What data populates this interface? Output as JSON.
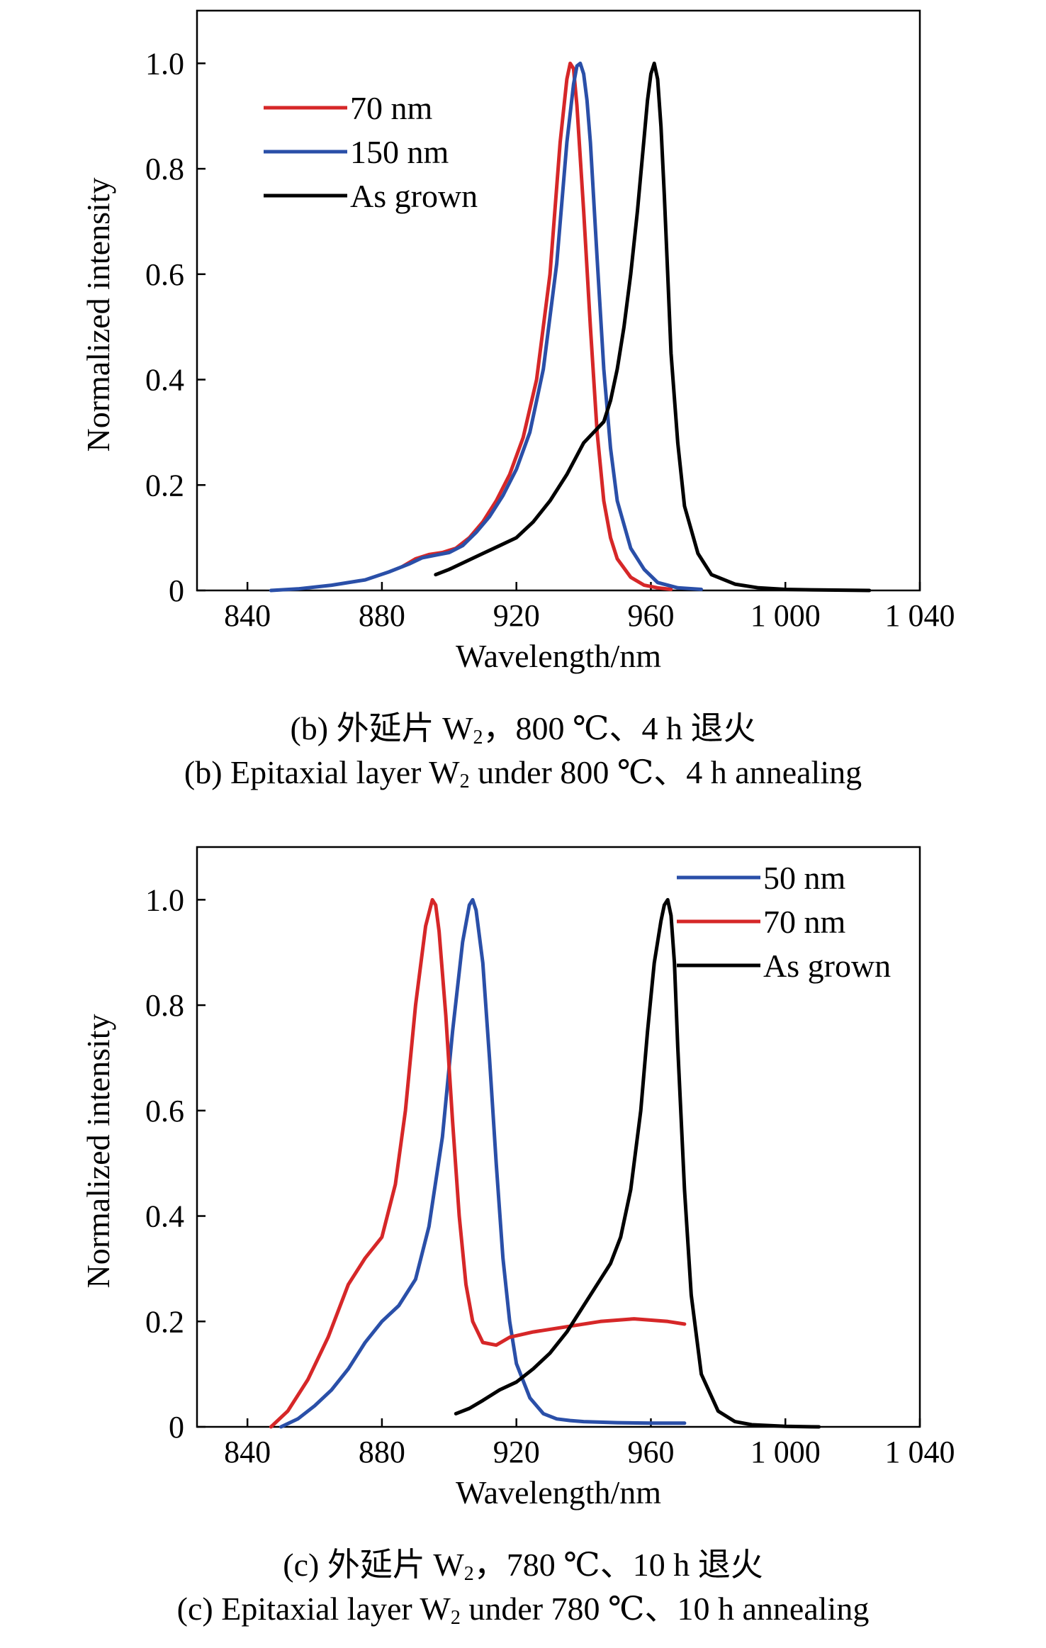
{
  "charts": [
    {
      "id": "b",
      "type": "line",
      "xlabel": "Wavelength/nm",
      "ylabel": "Normalized intensity",
      "xlim": [
        825,
        1040
      ],
      "ylim": [
        0,
        1.1
      ],
      "xticks": [
        840,
        880,
        920,
        960,
        1000,
        1040
      ],
      "xtick_labels": [
        "840",
        "880",
        "920",
        "960",
        "1 000",
        "1 040"
      ],
      "yticks": [
        0,
        0.2,
        0.4,
        0.6,
        0.8,
        1.0
      ],
      "ytick_labels": [
        "0",
        "0.2",
        "0.4",
        "0.6",
        "0.8",
        "1.0"
      ],
      "legend_position": "top-left",
      "caption_cn": {
        "pre": "(b) 外延片 W",
        "sub": "2",
        "post": "，800 ℃、4 h 退火"
      },
      "caption_en": {
        "pre": "(b) Epitaxial layer W",
        "sub": "2",
        "post": " under 800 ℃、4 h annealing"
      },
      "series": [
        {
          "name": "70 nm",
          "color": "#d62728",
          "x": [
            886,
            890,
            894,
            898,
            902,
            906,
            910,
            914,
            918,
            922,
            926,
            930,
            933,
            935,
            936,
            937,
            938,
            940,
            942,
            944,
            946,
            948,
            950,
            954,
            958,
            962,
            966
          ],
          "y": [
            0.045,
            0.06,
            0.068,
            0.072,
            0.08,
            0.1,
            0.13,
            0.17,
            0.22,
            0.29,
            0.4,
            0.6,
            0.85,
            0.97,
            1.0,
            0.99,
            0.92,
            0.72,
            0.5,
            0.3,
            0.17,
            0.1,
            0.06,
            0.025,
            0.01,
            0.005,
            0.002
          ]
        },
        {
          "name": "150 nm",
          "color": "#2a4fa8",
          "x": [
            847,
            855,
            865,
            875,
            882,
            888,
            892,
            896,
            900,
            904,
            908,
            912,
            916,
            920,
            924,
            928,
            932,
            935,
            937,
            938,
            939,
            940,
            941,
            942,
            944,
            946,
            948,
            950,
            954,
            958,
            962,
            968,
            975
          ],
          "y": [
            0.0,
            0.003,
            0.01,
            0.02,
            0.035,
            0.05,
            0.062,
            0.067,
            0.072,
            0.085,
            0.11,
            0.14,
            0.18,
            0.23,
            0.3,
            0.42,
            0.62,
            0.85,
            0.96,
            0.995,
            1.0,
            0.98,
            0.93,
            0.85,
            0.63,
            0.42,
            0.27,
            0.17,
            0.08,
            0.04,
            0.015,
            0.005,
            0.002
          ]
        },
        {
          "name": "As grown",
          "color": "#000000",
          "x": [
            896,
            900,
            905,
            910,
            915,
            920,
            925,
            930,
            935,
            940,
            943,
            946,
            948,
            950,
            952,
            954,
            956,
            958,
            959,
            960,
            961,
            962,
            963,
            964,
            965,
            966,
            968,
            970,
            974,
            978,
            985,
            992,
            1000,
            1010,
            1025
          ],
          "y": [
            0.03,
            0.04,
            0.055,
            0.07,
            0.085,
            0.1,
            0.13,
            0.17,
            0.22,
            0.28,
            0.3,
            0.32,
            0.36,
            0.42,
            0.5,
            0.6,
            0.72,
            0.86,
            0.93,
            0.98,
            1.0,
            0.97,
            0.88,
            0.75,
            0.6,
            0.45,
            0.28,
            0.16,
            0.07,
            0.03,
            0.012,
            0.005,
            0.002,
            0.001,
            0.0
          ]
        }
      ]
    },
    {
      "id": "c",
      "type": "line",
      "xlabel": "Wavelength/nm",
      "ylabel": "Normalized intensity",
      "xlim": [
        825,
        1040
      ],
      "ylim": [
        0,
        1.1
      ],
      "xticks": [
        840,
        880,
        920,
        960,
        1000,
        1040
      ],
      "xtick_labels": [
        "840",
        "880",
        "920",
        "960",
        "1 000",
        "1 040"
      ],
      "yticks": [
        0,
        0.2,
        0.4,
        0.6,
        0.8,
        1.0
      ],
      "ytick_labels": [
        "0",
        "0.2",
        "0.4",
        "0.6",
        "0.8",
        "1.0"
      ],
      "legend_position": "top-right",
      "caption_cn": {
        "pre": "(c) 外延片 W",
        "sub": "2",
        "post": "，780 ℃、10 h 退火"
      },
      "caption_en": {
        "pre": "(c) Epitaxial layer W",
        "sub": "2",
        "post": " under 780 ℃、10 h annealing"
      },
      "series": [
        {
          "name": "50 nm",
          "color": "#2a4fa8",
          "x": [
            850,
            855,
            860,
            865,
            870,
            875,
            880,
            885,
            890,
            894,
            898,
            901,
            904,
            906,
            907,
            908,
            910,
            912,
            914,
            916,
            918,
            920,
            924,
            928,
            932,
            936,
            940,
            950,
            960,
            970
          ],
          "y": [
            0.0,
            0.015,
            0.04,
            0.07,
            0.11,
            0.16,
            0.2,
            0.23,
            0.28,
            0.38,
            0.55,
            0.75,
            0.92,
            0.99,
            1.0,
            0.98,
            0.88,
            0.7,
            0.5,
            0.32,
            0.2,
            0.12,
            0.055,
            0.025,
            0.015,
            0.012,
            0.01,
            0.008,
            0.007,
            0.007
          ]
        },
        {
          "name": "70 nm",
          "color": "#d62728",
          "x": [
            847,
            852,
            858,
            864,
            870,
            875,
            880,
            884,
            887,
            890,
            893,
            895,
            896,
            897,
            899,
            901,
            903,
            905,
            907,
            910,
            914,
            918,
            925,
            935,
            945,
            955,
            965,
            970
          ],
          "y": [
            0.0,
            0.03,
            0.09,
            0.17,
            0.27,
            0.32,
            0.36,
            0.46,
            0.6,
            0.8,
            0.95,
            1.0,
            0.99,
            0.94,
            0.78,
            0.58,
            0.4,
            0.27,
            0.2,
            0.16,
            0.155,
            0.17,
            0.18,
            0.19,
            0.2,
            0.205,
            0.2,
            0.195
          ]
        },
        {
          "name": "As grown",
          "color": "#000000",
          "x": [
            902,
            906,
            910,
            915,
            920,
            925,
            930,
            935,
            940,
            945,
            948,
            951,
            954,
            957,
            959,
            961,
            963,
            964,
            965,
            966,
            967,
            968,
            970,
            972,
            975,
            980,
            985,
            990,
            1000,
            1010
          ],
          "y": [
            0.025,
            0.035,
            0.05,
            0.07,
            0.085,
            0.11,
            0.14,
            0.18,
            0.23,
            0.28,
            0.31,
            0.36,
            0.45,
            0.6,
            0.75,
            0.88,
            0.96,
            0.99,
            1.0,
            0.97,
            0.88,
            0.72,
            0.45,
            0.25,
            0.1,
            0.03,
            0.01,
            0.004,
            0.001,
            0.0
          ]
        }
      ]
    }
  ]
}
